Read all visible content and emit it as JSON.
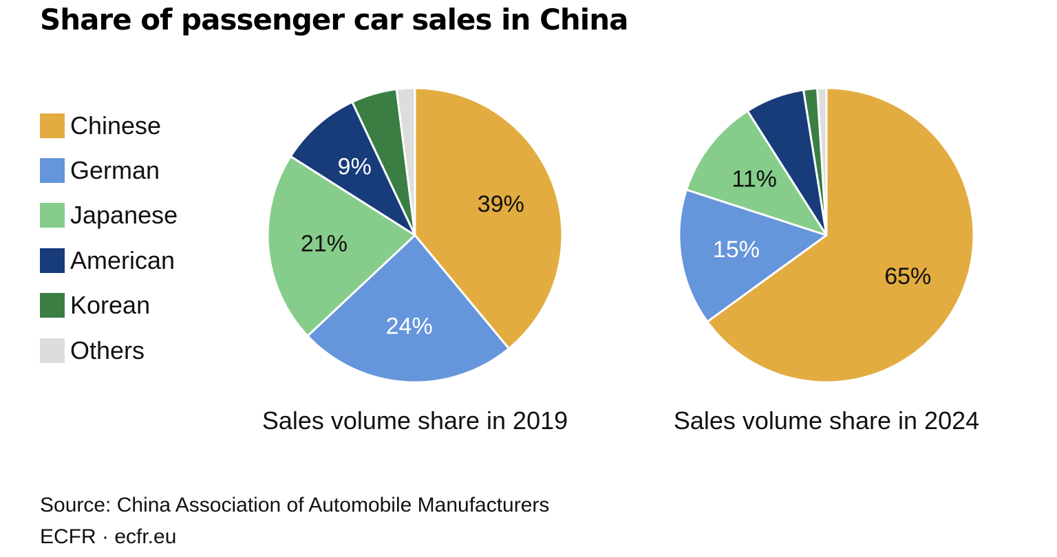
{
  "title": "Share of passenger car sales in China",
  "legend": [
    {
      "label": "Chinese",
      "color": "#E2AC40"
    },
    {
      "label": "German",
      "color": "#6595DA"
    },
    {
      "label": "Japanese",
      "color": "#86CD8B"
    },
    {
      "label": "American",
      "color": "#183B7A"
    },
    {
      "label": "Korean",
      "color": "#3A7E44"
    },
    {
      "label": "Others",
      "color": "#DDDDDD"
    }
  ],
  "chart_data": [
    {
      "type": "pie",
      "title": "Sales volume share in 2019",
      "categories": [
        "Chinese",
        "German",
        "Japanese",
        "American",
        "Korean",
        "Others"
      ],
      "values": [
        39,
        24,
        21,
        9,
        5,
        2
      ],
      "data_labels": [
        "39%",
        "24%",
        "21%",
        "9%",
        "",
        ""
      ],
      "colors": [
        "#E2AC40",
        "#6595DA",
        "#86CD8B",
        "#183B7A",
        "#3A7E44",
        "#DDDDDD"
      ],
      "label_colors": [
        "#111111",
        "#FFFFFF",
        "#111111",
        "#FFFFFF",
        "#FFFFFF",
        "#111111"
      ]
    },
    {
      "type": "pie",
      "title": "Sales volume share in 2024",
      "categories": [
        "Chinese",
        "German",
        "Japanese",
        "American",
        "Korean",
        "Others"
      ],
      "values": [
        65,
        15,
        11,
        6.5,
        1.5,
        1
      ],
      "data_labels": [
        "65%",
        "15%",
        "11%",
        "",
        "",
        ""
      ],
      "colors": [
        "#E2AC40",
        "#6595DA",
        "#86CD8B",
        "#183B7A",
        "#3A7E44",
        "#DDDDDD"
      ],
      "label_colors": [
        "#111111",
        "#FFFFFF",
        "#111111",
        "#FFFFFF",
        "#FFFFFF",
        "#111111"
      ]
    }
  ],
  "source": "Source: China Association of Automobile Manufacturers",
  "credit": "ECFR · ecfr.eu"
}
